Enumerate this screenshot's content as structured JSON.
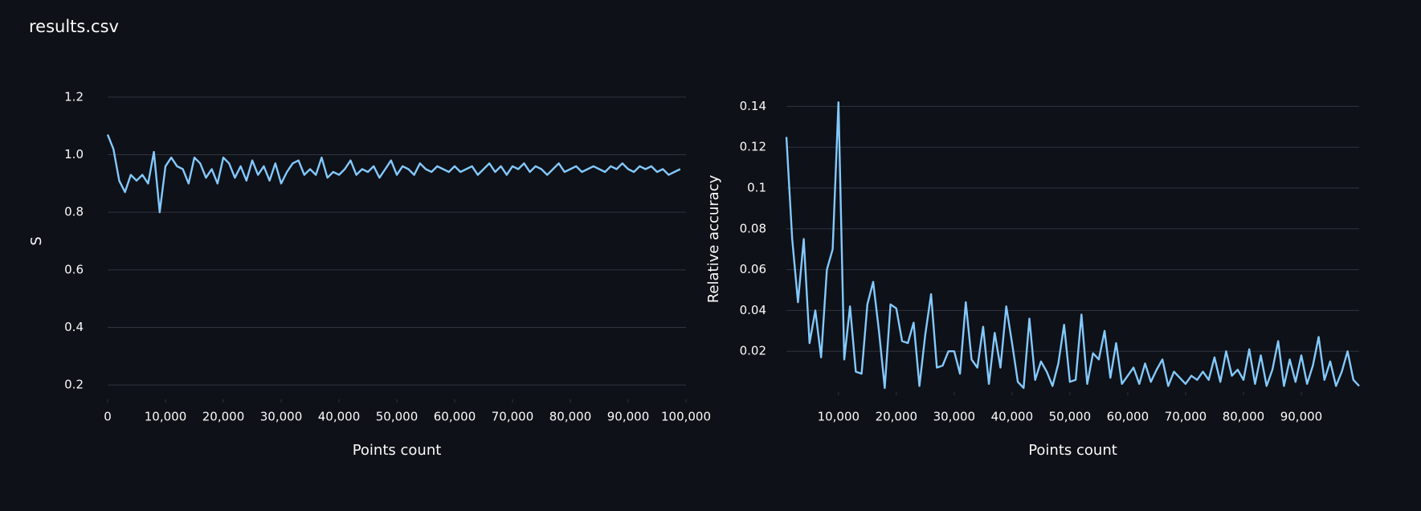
{
  "header": {
    "title": "results.csv"
  },
  "chart_data": [
    {
      "type": "line",
      "x_label": "Points count",
      "y_label": "S",
      "color": "#83c9ff",
      "grid": true,
      "xlim": [
        0,
        100000
      ],
      "ylim": [
        0.15,
        1.25
      ],
      "xticks": [
        0,
        {
          "value": 10000,
          "label": "10,000"
        },
        {
          "value": 20000,
          "label": "20,000"
        },
        {
          "value": 30000,
          "label": "30,000"
        },
        {
          "value": 40000,
          "label": "40,000"
        },
        {
          "value": 50000,
          "label": "50,000"
        },
        {
          "value": 60000,
          "label": "60,000"
        },
        {
          "value": 70000,
          "label": "70,000"
        },
        {
          "value": 80000,
          "label": "80,000"
        },
        {
          "value": 90000,
          "label": "90,000"
        },
        {
          "value": 100000,
          "label": "100,000"
        }
      ],
      "yticks": [
        0.2,
        0.4,
        0.6,
        0.8,
        {
          "value": 1,
          "label": "1.0"
        },
        1.2
      ],
      "x": [
        0,
        1000,
        2000,
        3000,
        4000,
        5000,
        6000,
        7000,
        8000,
        9000,
        10000,
        11000,
        12000,
        13000,
        14000,
        15000,
        16000,
        17000,
        18000,
        19000,
        20000,
        21000,
        22000,
        23000,
        24000,
        25000,
        26000,
        27000,
        28000,
        29000,
        30000,
        31000,
        32000,
        33000,
        34000,
        35000,
        36000,
        37000,
        38000,
        39000,
        40000,
        41000,
        42000,
        43000,
        44000,
        45000,
        46000,
        47000,
        48000,
        49000,
        50000,
        51000,
        52000,
        53000,
        54000,
        55000,
        56000,
        57000,
        58000,
        59000,
        60000,
        61000,
        62000,
        63000,
        64000,
        65000,
        66000,
        67000,
        68000,
        69000,
        70000,
        71000,
        72000,
        73000,
        74000,
        75000,
        76000,
        77000,
        78000,
        79000,
        80000,
        81000,
        82000,
        83000,
        84000,
        85000,
        86000,
        87000,
        88000,
        89000,
        90000,
        91000,
        92000,
        93000,
        94000,
        95000,
        96000,
        97000,
        98000,
        99000
      ],
      "values": [
        1.07,
        1.02,
        0.91,
        0.87,
        0.93,
        0.91,
        0.93,
        0.9,
        1.01,
        0.8,
        0.96,
        0.99,
        0.96,
        0.95,
        0.9,
        0.99,
        0.97,
        0.92,
        0.95,
        0.9,
        0.99,
        0.97,
        0.92,
        0.96,
        0.91,
        0.98,
        0.93,
        0.96,
        0.91,
        0.97,
        0.9,
        0.94,
        0.97,
        0.98,
        0.93,
        0.95,
        0.93,
        0.99,
        0.92,
        0.94,
        0.93,
        0.95,
        0.98,
        0.93,
        0.95,
        0.94,
        0.96,
        0.92,
        0.95,
        0.98,
        0.93,
        0.96,
        0.95,
        0.93,
        0.97,
        0.95,
        0.94,
        0.96,
        0.95,
        0.94,
        0.96,
        0.94,
        0.95,
        0.96,
        0.93,
        0.95,
        0.97,
        0.94,
        0.96,
        0.93,
        0.96,
        0.95,
        0.97,
        0.94,
        0.96,
        0.95,
        0.93,
        0.95,
        0.97,
        0.94,
        0.95,
        0.96,
        0.94,
        0.95,
        0.96,
        0.95,
        0.94,
        0.96,
        0.95,
        0.97,
        0.95,
        0.94,
        0.96,
        0.95,
        0.96,
        0.94,
        0.95,
        0.93,
        0.94,
        0.95
      ]
    },
    {
      "type": "line",
      "x_label": "Points count",
      "y_label": "Relative accuracy",
      "color": "#83c9ff",
      "grid": true,
      "xlim": [
        1000,
        100000
      ],
      "ylim": [
        0,
        0.15
      ],
      "xticks": [
        {
          "value": 10000,
          "label": "10,000"
        },
        {
          "value": 20000,
          "label": "20,000"
        },
        {
          "value": 30000,
          "label": "30,000"
        },
        {
          "value": 40000,
          "label": "40,000"
        },
        {
          "value": 50000,
          "label": "50,000"
        },
        {
          "value": 60000,
          "label": "60,000"
        },
        {
          "value": 70000,
          "label": "70,000"
        },
        {
          "value": 80000,
          "label": "80,000"
        },
        {
          "value": 90000,
          "label": "90,000"
        }
      ],
      "yticks": [
        0.02,
        0.04,
        0.06,
        0.08,
        0.1,
        0.12,
        0.14
      ],
      "x": [
        1000,
        2000,
        3000,
        4000,
        5000,
        6000,
        7000,
        8000,
        9000,
        10000,
        11000,
        12000,
        13000,
        14000,
        15000,
        16000,
        17000,
        18000,
        19000,
        20000,
        21000,
        22000,
        23000,
        24000,
        25000,
        26000,
        27000,
        28000,
        29000,
        30000,
        31000,
        32000,
        33000,
        34000,
        35000,
        36000,
        37000,
        38000,
        39000,
        40000,
        41000,
        42000,
        43000,
        44000,
        45000,
        46000,
        47000,
        48000,
        49000,
        50000,
        51000,
        52000,
        53000,
        54000,
        55000,
        56000,
        57000,
        58000,
        59000,
        60000,
        61000,
        62000,
        63000,
        64000,
        65000,
        66000,
        67000,
        68000,
        69000,
        70000,
        71000,
        72000,
        73000,
        74000,
        75000,
        76000,
        77000,
        78000,
        79000,
        80000,
        81000,
        82000,
        83000,
        84000,
        85000,
        86000,
        87000,
        88000,
        89000,
        90000,
        91000,
        92000,
        93000,
        94000,
        95000,
        96000,
        97000,
        98000,
        99000,
        100000
      ],
      "values": [
        0.125,
        0.075,
        0.044,
        0.075,
        0.024,
        0.04,
        0.017,
        0.06,
        0.07,
        0.142,
        0.016,
        0.042,
        0.01,
        0.009,
        0.043,
        0.054,
        0.03,
        0.002,
        0.043,
        0.041,
        0.025,
        0.024,
        0.034,
        0.003,
        0.028,
        0.048,
        0.012,
        0.013,
        0.02,
        0.02,
        0.009,
        0.044,
        0.016,
        0.012,
        0.032,
        0.004,
        0.029,
        0.012,
        0.042,
        0.024,
        0.005,
        0.002,
        0.036,
        0.006,
        0.015,
        0.01,
        0.003,
        0.014,
        0.033,
        0.005,
        0.006,
        0.038,
        0.004,
        0.019,
        0.016,
        0.03,
        0.007,
        0.024,
        0.004,
        0.008,
        0.012,
        0.004,
        0.014,
        0.005,
        0.011,
        0.016,
        0.003,
        0.01,
        0.007,
        0.004,
        0.008,
        0.006,
        0.01,
        0.006,
        0.017,
        0.005,
        0.02,
        0.008,
        0.011,
        0.006,
        0.021,
        0.004,
        0.018,
        0.003,
        0.011,
        0.025,
        0.003,
        0.016,
        0.005,
        0.018,
        0.004,
        0.013,
        0.027,
        0.006,
        0.015,
        0.003,
        0.01,
        0.02,
        0.006,
        0.003
      ]
    }
  ]
}
